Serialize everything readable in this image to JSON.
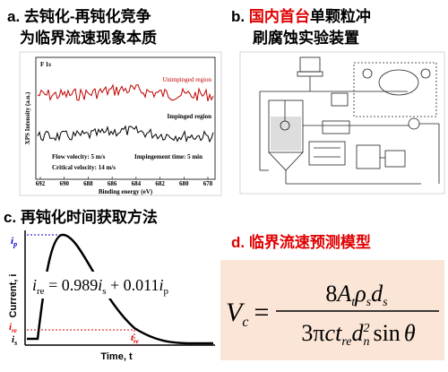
{
  "panel_a": {
    "title": [
      "a. 去钝化-再钝化竞争",
      "为临界流速现象本质"
    ],
    "peak": "F 1s",
    "series_labels": [
      "Unimpinged region",
      "Impinged region"
    ],
    "notes": [
      "Flow volecity: 5 m/s",
      "Impingement time: 5 min",
      "Critical velocity: 14 m/s"
    ],
    "x_ticks": [
      "692",
      "690",
      "688",
      "686",
      "684",
      "682",
      "680",
      "678"
    ],
    "x_label": "Binding energy (eV)",
    "y_label": "XPS Intensity (a.u.)"
  },
  "panel_b": {
    "title": [
      "b. ",
      "国内首台",
      "单颗粒冲",
      "刷腐蚀实验装置"
    ]
  },
  "panel_c": {
    "title": "c. 再钝化时间获取方法",
    "y_label": "Current, i",
    "x_label": "Time, t",
    "markers": {
      "ip": [
        "i",
        "p"
      ],
      "is": [
        "i",
        "s"
      ],
      "ire": [
        "i",
        "re"
      ],
      "tre": [
        "t",
        "re"
      ]
    },
    "formula": [
      "i",
      "re",
      " = 0.989",
      "i",
      "s",
      " + 0.011",
      "i",
      "p"
    ]
  },
  "panel_d": {
    "title": "d. 临界流速预测模型",
    "lhs": [
      "V",
      "c",
      "="
    ],
    "numerator": [
      "8",
      "A",
      "t",
      "ρ",
      "s",
      "d",
      "s"
    ],
    "denominator": [
      "3π",
      "c",
      "t",
      "re",
      "d",
      "n",
      "2",
      "sin",
      "θ"
    ]
  }
}
